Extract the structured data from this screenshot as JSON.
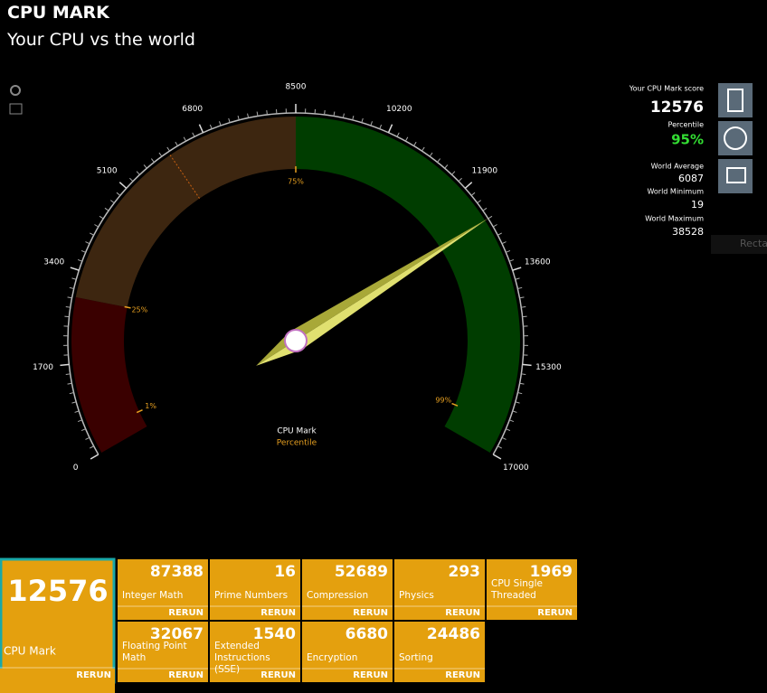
{
  "header": {
    "title": "CPU MARK",
    "subtitle": "Your CPU vs the world"
  },
  "gauge": {
    "ticks": [
      0,
      1700,
      3400,
      5100,
      6800,
      8500,
      10200,
      11900,
      13600,
      15300,
      17000
    ],
    "percentiles": [
      {
        "value": 400,
        "label": "1%"
      },
      {
        "value": 2918,
        "label": "25%"
      },
      {
        "value": 8500,
        "label": "75%"
      },
      {
        "value": 16430,
        "label": "99%"
      }
    ],
    "center_title": "CPU Mark",
    "center_subtitle": "Percentile"
  },
  "stats": {
    "score_label": "Your CPU Mark score",
    "score": 12576,
    "percentile_label": "Percentile",
    "percentile": "95%",
    "average_label": "World Average",
    "average": 6087,
    "minimum_label": "World Minimum",
    "minimum": 19,
    "maximum_label": "World Maximum",
    "maximum": 38528,
    "side_button": "Recta"
  },
  "tiles": {
    "main": {
      "label": "CPU Mark",
      "value": 12576,
      "button": "RERUN"
    },
    "tests": [
      {
        "label": "Integer Math",
        "value": 87388,
        "button": "RERUN"
      },
      {
        "label": "Prime Numbers",
        "value": 16,
        "button": "RERUN"
      },
      {
        "label": "Compression",
        "value": 52689,
        "button": "RERUN"
      },
      {
        "label": "Physics",
        "value": 293,
        "button": "RERUN"
      },
      {
        "label": "CPU Single Threaded",
        "value": 1969,
        "button": "RERUN"
      },
      {
        "label": "Floating Point Math",
        "value": 32067,
        "button": "RERUN"
      },
      {
        "label": "Extended Instructions (SSE)",
        "value": 1540,
        "button": "RERUN"
      },
      {
        "label": "Encryption",
        "value": 6680,
        "button": "RERUN"
      },
      {
        "label": "Sorting",
        "value": 24486,
        "button": "RERUN"
      }
    ]
  }
}
